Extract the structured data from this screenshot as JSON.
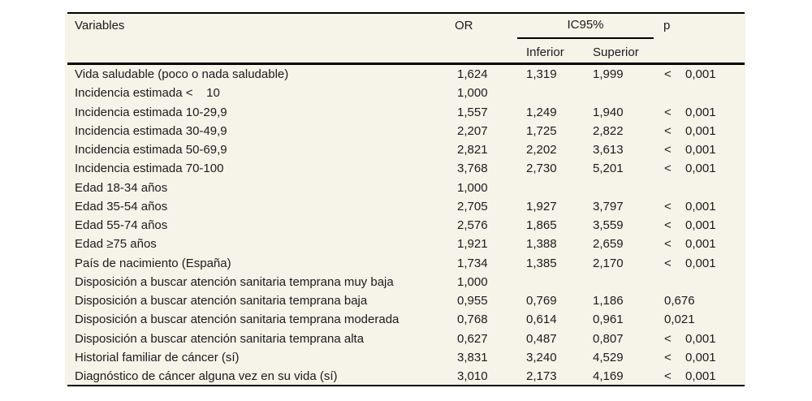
{
  "colors": {
    "page_background": "#ffffff",
    "panel_background": "#f6f3e9",
    "text": "#1b1b1b",
    "rule": "#000000"
  },
  "table": {
    "headers": {
      "variables": "Variables",
      "or": "OR",
      "ic95": "IC95%",
      "inferior": "Inferior",
      "superior": "Superior",
      "p": "p"
    },
    "rows": [
      {
        "variable": "Vida saludable (poco o nada saludable)",
        "or": "1,624",
        "inferior": "1,319",
        "superior": "1,999",
        "p_sign": "<",
        "p_value": "0,001"
      },
      {
        "variable": "Incidencia estimada <    10",
        "or": "1,000",
        "inferior": "",
        "superior": "",
        "p_sign": "",
        "p_value": ""
      },
      {
        "variable": "Incidencia estimada 10-29,9",
        "or": "1,557",
        "inferior": "1,249",
        "superior": "1,940",
        "p_sign": "<",
        "p_value": "0,001"
      },
      {
        "variable": "Incidencia estimada 30-49,9",
        "or": "2,207",
        "inferior": "1,725",
        "superior": "2,822",
        "p_sign": "<",
        "p_value": "0,001"
      },
      {
        "variable": "Incidencia estimada 50-69,9",
        "or": "2,821",
        "inferior": "2,202",
        "superior": "3,613",
        "p_sign": "<",
        "p_value": "0,001"
      },
      {
        "variable": "Incidencia estimada 70-100",
        "or": "3,768",
        "inferior": "2,730",
        "superior": "5,201",
        "p_sign": "<",
        "p_value": "0,001"
      },
      {
        "variable": "Edad 18-34 años",
        "or": "1,000",
        "inferior": "",
        "superior": "",
        "p_sign": "",
        "p_value": ""
      },
      {
        "variable": "Edad 35-54 años",
        "or": "2,705",
        "inferior": "1,927",
        "superior": "3,797",
        "p_sign": "<",
        "p_value": "0,001"
      },
      {
        "variable": "Edad 55-74 años",
        "or": "2,576",
        "inferior": "1,865",
        "superior": "3,559",
        "p_sign": "<",
        "p_value": "0,001"
      },
      {
        "variable": "Edad ≥75 años",
        "or": "1,921",
        "inferior": "1,388",
        "superior": "2,659",
        "p_sign": "<",
        "p_value": "0,001"
      },
      {
        "variable": "País de nacimiento (España)",
        "or": "1,734",
        "inferior": "1,385",
        "superior": "2,170",
        "p_sign": "<",
        "p_value": "0,001"
      },
      {
        "variable": "Disposición a buscar atención sanitaria temprana muy baja",
        "or": "1,000",
        "inferior": "",
        "superior": "",
        "p_sign": "",
        "p_value": ""
      },
      {
        "variable": "Disposición a buscar atención sanitaria temprana baja",
        "or": "0,955",
        "inferior": "0,769",
        "superior": "1,186",
        "p_sign": "",
        "p_value": "0,676"
      },
      {
        "variable": "Disposición a buscar atención sanitaria temprana moderada",
        "or": "0,768",
        "inferior": "0,614",
        "superior": "0,961",
        "p_sign": "",
        "p_value": "0,021"
      },
      {
        "variable": "Disposición a buscar atención sanitaria temprana alta",
        "or": "0,627",
        "inferior": "0,487",
        "superior": "0,807",
        "p_sign": "<",
        "p_value": "0,001"
      },
      {
        "variable": "Historial familiar de cáncer (sí)",
        "or": "3,831",
        "inferior": "3,240",
        "superior": "4,529",
        "p_sign": "<",
        "p_value": "0,001"
      },
      {
        "variable": "Diagnóstico de cáncer alguna vez en su vida (sí)",
        "or": "3,010",
        "inferior": "2,173",
        "superior": "4,169",
        "p_sign": "<",
        "p_value": "0,001"
      }
    ]
  }
}
